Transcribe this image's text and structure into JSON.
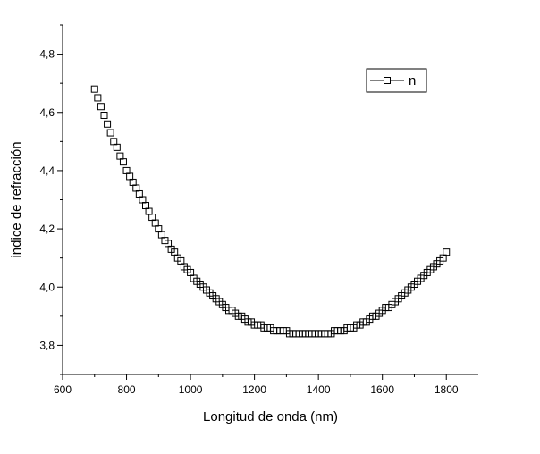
{
  "chart_data": {
    "type": "scatter",
    "title": "",
    "xlabel": "Longitud de onda (nm)",
    "ylabel": "indice de refracción",
    "xlim": [
      600,
      1900
    ],
    "ylim": [
      3.7,
      4.9
    ],
    "xticks": [
      600,
      800,
      1000,
      1200,
      1400,
      1600,
      1800
    ],
    "xtick_labels": [
      "600",
      "800",
      "1000",
      "1200",
      "1400",
      "1600",
      "1800"
    ],
    "yticks": [
      3.8,
      4.0,
      4.2,
      4.4,
      4.6,
      4.8
    ],
    "ytick_labels": [
      "3,8",
      "4,0",
      "4,2",
      "4,4",
      "4,6",
      "4,8"
    ],
    "grid": false,
    "legend_position": "top-right",
    "series": [
      {
        "name": "n",
        "marker": "open-square",
        "line": false,
        "color": "#000000",
        "x": [
          700,
          710,
          720,
          730,
          740,
          750,
          760,
          770,
          780,
          790,
          800,
          810,
          820,
          830,
          840,
          850,
          860,
          870,
          880,
          890,
          900,
          910,
          920,
          930,
          940,
          950,
          960,
          970,
          980,
          990,
          1000,
          1010,
          1020,
          1030,
          1040,
          1050,
          1060,
          1070,
          1080,
          1090,
          1100,
          1110,
          1120,
          1130,
          1140,
          1150,
          1160,
          1170,
          1180,
          1190,
          1200,
          1210,
          1220,
          1230,
          1240,
          1250,
          1260,
          1270,
          1280,
          1290,
          1300,
          1310,
          1320,
          1330,
          1340,
          1350,
          1360,
          1370,
          1380,
          1390,
          1400,
          1410,
          1420,
          1430,
          1440,
          1450,
          1460,
          1470,
          1480,
          1490,
          1500,
          1510,
          1520,
          1530,
          1540,
          1550,
          1560,
          1570,
          1580,
          1590,
          1600,
          1610,
          1620,
          1630,
          1640,
          1650,
          1660,
          1670,
          1680,
          1690,
          1700,
          1710,
          1720,
          1730,
          1740,
          1750,
          1760,
          1770,
          1780,
          1790,
          1800
        ],
        "values": [
          4.68,
          4.65,
          4.62,
          4.59,
          4.56,
          4.53,
          4.5,
          4.48,
          4.45,
          4.43,
          4.4,
          4.38,
          4.36,
          4.34,
          4.32,
          4.3,
          4.28,
          4.26,
          4.24,
          4.22,
          4.2,
          4.18,
          4.16,
          4.15,
          4.13,
          4.12,
          4.1,
          4.09,
          4.07,
          4.06,
          4.05,
          4.03,
          4.02,
          4.01,
          4.0,
          3.99,
          3.98,
          3.97,
          3.96,
          3.95,
          3.94,
          3.93,
          3.92,
          3.92,
          3.91,
          3.9,
          3.9,
          3.89,
          3.88,
          3.88,
          3.87,
          3.87,
          3.87,
          3.86,
          3.86,
          3.86,
          3.85,
          3.85,
          3.85,
          3.85,
          3.85,
          3.84,
          3.84,
          3.84,
          3.84,
          3.84,
          3.84,
          3.84,
          3.84,
          3.84,
          3.84,
          3.84,
          3.84,
          3.84,
          3.84,
          3.85,
          3.85,
          3.85,
          3.85,
          3.86,
          3.86,
          3.86,
          3.87,
          3.87,
          3.88,
          3.88,
          3.89,
          3.9,
          3.9,
          3.91,
          3.92,
          3.93,
          3.93,
          3.94,
          3.95,
          3.96,
          3.97,
          3.98,
          3.99,
          4.0,
          4.01,
          4.02,
          4.03,
          4.04,
          4.05,
          4.06,
          4.07,
          4.08,
          4.09,
          4.1,
          4.12
        ]
      }
    ]
  }
}
